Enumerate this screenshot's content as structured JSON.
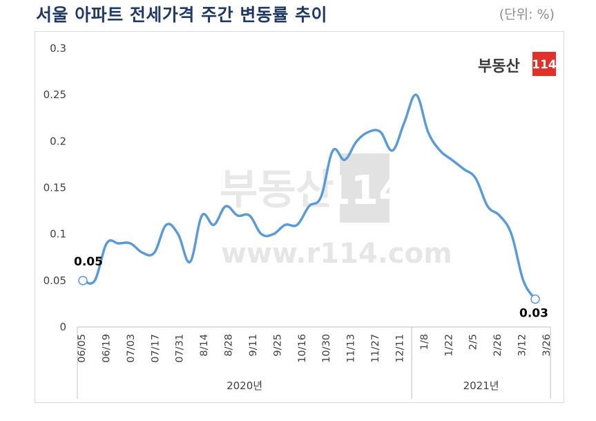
{
  "header": {
    "title": "서울 아파트 전세가격 주간 변동률 추이",
    "unit": "(단위: %)"
  },
  "logo": {
    "text": "부동산",
    "number": "114"
  },
  "watermark": {
    "text": "부동산",
    "number": "114",
    "url": "www.r114.com"
  },
  "colors": {
    "line": "#5b9bd5",
    "title": "#1f3864",
    "logo_red": "#e0312b"
  },
  "chart_data": {
    "type": "line",
    "ylim": [
      0,
      0.3
    ],
    "yticks": [
      "0",
      "0.05",
      "0.1",
      "0.15",
      "0.2",
      "0.25",
      "0.3"
    ],
    "xtick_labels": [
      "06/05",
      "06/19",
      "07/03",
      "07/17",
      "07/31",
      "8/14",
      "8/28",
      "9/11",
      "9/25",
      "10/16",
      "10/30",
      "11/13",
      "11/27",
      "12/11",
      "1/8",
      "1/22",
      "2/5",
      "2/26",
      "3/12",
      "3/26"
    ],
    "year_groups": [
      {
        "label": "2020년",
        "span": 14
      },
      {
        "label": "2021년",
        "span": 6
      }
    ],
    "series": [
      {
        "values": [
          0.05,
          0.05,
          0.09,
          0.09,
          0.09,
          0.08,
          0.08,
          0.11,
          0.1,
          0.07,
          0.12,
          0.11,
          0.13,
          0.12,
          0.12,
          0.1,
          0.1,
          0.11,
          0.11,
          0.13,
          0.14,
          0.19,
          0.18,
          0.2,
          0.21,
          0.21,
          0.19,
          0.22,
          0.25,
          0.21,
          0.19,
          0.18,
          0.17,
          0.16,
          0.13,
          0.12,
          0.1,
          0.05,
          0.03
        ]
      }
    ],
    "data_labels": [
      {
        "index": 0,
        "text": "0.05"
      },
      {
        "index": 38,
        "text": "0.03"
      }
    ],
    "grid": false,
    "legend": "none"
  }
}
